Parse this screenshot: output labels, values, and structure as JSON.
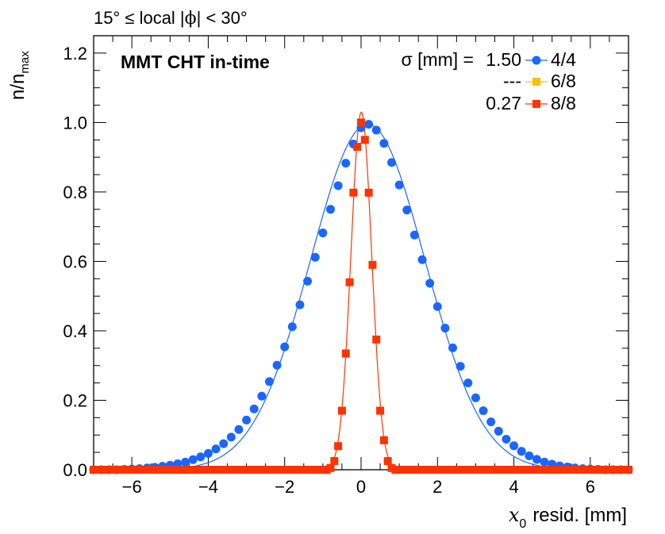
{
  "header": {
    "region_text_a": "15° ≤ local |",
    "region_phi": "ϕ",
    "region_text_b": "| < 30°"
  },
  "chart_data": {
    "type": "scatter",
    "title": "MMT CHT in-time",
    "xlabel_var": "x",
    "xlabel_sub": "0",
    "xlabel_rest": "resid. [mm]",
    "ylabel_main": "n/n",
    "ylabel_sub": "max",
    "xlim": [
      -7,
      7
    ],
    "ylim": [
      0,
      1.25
    ],
    "xticks": [
      -6,
      -4,
      -2,
      0,
      2,
      4,
      6
    ],
    "xtick_labels": [
      "−6",
      "−4",
      "−2",
      "0",
      "2",
      "4",
      "6"
    ],
    "yticks": [
      0,
      0.2,
      0.4,
      0.6,
      0.8,
      1.0,
      1.2
    ],
    "ytick_labels": [
      "0.0",
      "0.2",
      "0.4",
      "0.6",
      "0.8",
      "1.0",
      "1.2"
    ],
    "grid": false,
    "legend_header": "σ [mm] =",
    "legend_position": "top-right",
    "series": [
      {
        "name": "4/4",
        "sigma": "1.50",
        "color": "#1a66ff",
        "marker": "circle",
        "bin_width": 0.2,
        "x": [
          -7.0,
          -6.8,
          -6.6,
          -6.4,
          -6.2,
          -6.0,
          -5.8,
          -5.6,
          -5.4,
          -5.2,
          -5.0,
          -4.8,
          -4.6,
          -4.4,
          -4.2,
          -4.0,
          -3.8,
          -3.6,
          -3.4,
          -3.2,
          -3.0,
          -2.8,
          -2.6,
          -2.4,
          -2.2,
          -2.0,
          -1.8,
          -1.6,
          -1.4,
          -1.2,
          -1.0,
          -0.8,
          -0.6,
          -0.4,
          -0.2,
          0.0,
          0.2,
          0.4,
          0.6,
          0.8,
          1.0,
          1.2,
          1.4,
          1.6,
          1.8,
          2.0,
          2.2,
          2.4,
          2.6,
          2.8,
          3.0,
          3.2,
          3.4,
          3.6,
          3.8,
          4.0,
          4.2,
          4.4,
          4.6,
          4.8,
          5.0,
          5.2,
          5.4,
          5.6,
          5.8,
          6.0,
          6.2,
          6.4,
          6.6,
          6.8,
          7.0
        ],
        "values": [
          0.0,
          0.0,
          0.0,
          0.0,
          0.001,
          0.002,
          0.003,
          0.005,
          0.007,
          0.01,
          0.013,
          0.017,
          0.022,
          0.029,
          0.037,
          0.047,
          0.06,
          0.075,
          0.094,
          0.116,
          0.143,
          0.175,
          0.212,
          0.254,
          0.301,
          0.354,
          0.412,
          0.475,
          0.543,
          0.612,
          0.682,
          0.75,
          0.818,
          0.883,
          0.938,
          0.985,
          0.995,
          0.978,
          0.94,
          0.885,
          0.82,
          0.748,
          0.676,
          0.605,
          0.537,
          0.47,
          0.408,
          0.351,
          0.298,
          0.25,
          0.207,
          0.17,
          0.138,
          0.111,
          0.088,
          0.069,
          0.053,
          0.04,
          0.03,
          0.022,
          0.016,
          0.011,
          0.008,
          0.005,
          0.003,
          0.002,
          0.001,
          0.0,
          0.0,
          0.0,
          0.0
        ]
      },
      {
        "name": "6/8",
        "sigma": "---",
        "color": "#ffbf00",
        "marker": "square",
        "bin_width": 0.1,
        "x": [],
        "values": []
      },
      {
        "name": "8/8",
        "sigma": "0.27",
        "color": "#ff3300",
        "marker": "square",
        "bin_width": 0.1,
        "x": [
          -7.0,
          -6.9,
          -6.8,
          -6.7,
          -6.6,
          -6.5,
          -6.4,
          -6.3,
          -6.2,
          -6.1,
          -6.0,
          -5.9,
          -5.8,
          -5.7,
          -5.6,
          -5.5,
          -5.4,
          -5.3,
          -5.2,
          -5.1,
          -5.0,
          -4.9,
          -4.8,
          -4.7,
          -4.6,
          -4.5,
          -4.4,
          -4.3,
          -4.2,
          -4.1,
          -4.0,
          -3.9,
          -3.8,
          -3.7,
          -3.6,
          -3.5,
          -3.4,
          -3.3,
          -3.2,
          -3.1,
          -3.0,
          -2.9,
          -2.8,
          -2.7,
          -2.6,
          -2.5,
          -2.4,
          -2.3,
          -2.2,
          -2.1,
          -2.0,
          -1.9,
          -1.8,
          -1.7,
          -1.6,
          -1.5,
          -1.4,
          -1.3,
          -1.2,
          -1.1,
          -1.0,
          -0.9,
          -0.8,
          -0.7,
          -0.6,
          -0.5,
          -0.4,
          -0.3,
          -0.2,
          -0.1,
          0.0,
          0.1,
          0.2,
          0.3,
          0.4,
          0.5,
          0.6,
          0.7,
          0.8,
          0.9,
          1.0,
          1.1,
          1.2,
          1.3,
          1.4,
          1.5,
          1.6,
          1.7,
          1.8,
          1.9,
          2.0,
          2.1,
          2.2,
          2.3,
          2.4,
          2.5,
          2.6,
          2.7,
          2.8,
          2.9,
          3.0,
          3.1,
          3.2,
          3.3,
          3.4,
          3.5,
          3.6,
          3.7,
          3.8,
          3.9,
          4.0,
          4.1,
          4.2,
          4.3,
          4.4,
          4.5,
          4.6,
          4.7,
          4.8,
          4.9,
          5.0,
          5.1,
          5.2,
          5.3,
          5.4,
          5.5,
          5.6,
          5.7,
          5.8,
          5.9,
          6.0,
          6.1,
          6.2,
          6.3,
          6.4,
          6.5,
          6.6,
          6.7,
          6.8,
          6.9,
          7.0
        ],
        "values": [
          0.0,
          0.0,
          0.0,
          0.0,
          0.0,
          0.0,
          0.0,
          0.0,
          0.0,
          0.0,
          0.0,
          0.0,
          0.0,
          0.0,
          0.0,
          0.0,
          0.0,
          0.0,
          0.0,
          0.0,
          0.0,
          0.0,
          0.0,
          0.0,
          0.0,
          0.0,
          0.0,
          0.0,
          0.0,
          0.0,
          0.0,
          0.0,
          0.0,
          0.0,
          0.0,
          0.0,
          0.0,
          0.0,
          0.0,
          0.0,
          0.0,
          0.0,
          0.0,
          0.0,
          0.0,
          0.0,
          0.0,
          0.0,
          0.0,
          0.0,
          0.0,
          0.0,
          0.0,
          0.0,
          0.0,
          0.0,
          0.0,
          0.0,
          0.0,
          0.0,
          0.0,
          0.0,
          0.005,
          0.025,
          0.068,
          0.17,
          0.335,
          0.54,
          0.798,
          0.93,
          1.0,
          0.95,
          0.798,
          0.59,
          0.375,
          0.17,
          0.085,
          0.025,
          0.005,
          0.0,
          0.0,
          0.0,
          0.0,
          0.0,
          0.0,
          0.0,
          0.0,
          0.0,
          0.0,
          0.0,
          0.0,
          0.0,
          0.0,
          0.0,
          0.0,
          0.0,
          0.0,
          0.0,
          0.0,
          0.0,
          0.0,
          0.0,
          0.0,
          0.0,
          0.0,
          0.0,
          0.0,
          0.0,
          0.0,
          0.0,
          0.0,
          0.0,
          0.0,
          0.0,
          0.0,
          0.0,
          0.0,
          0.0,
          0.0,
          0.0,
          0.0,
          0.0,
          0.0,
          0.0,
          0.0,
          0.0,
          0.0,
          0.0,
          0.0,
          0.0,
          0.0,
          0.0,
          0.0,
          0.0,
          0.0,
          0.0,
          0.0,
          0.0,
          0.0,
          0.0,
          0.0
        ]
      }
    ]
  }
}
